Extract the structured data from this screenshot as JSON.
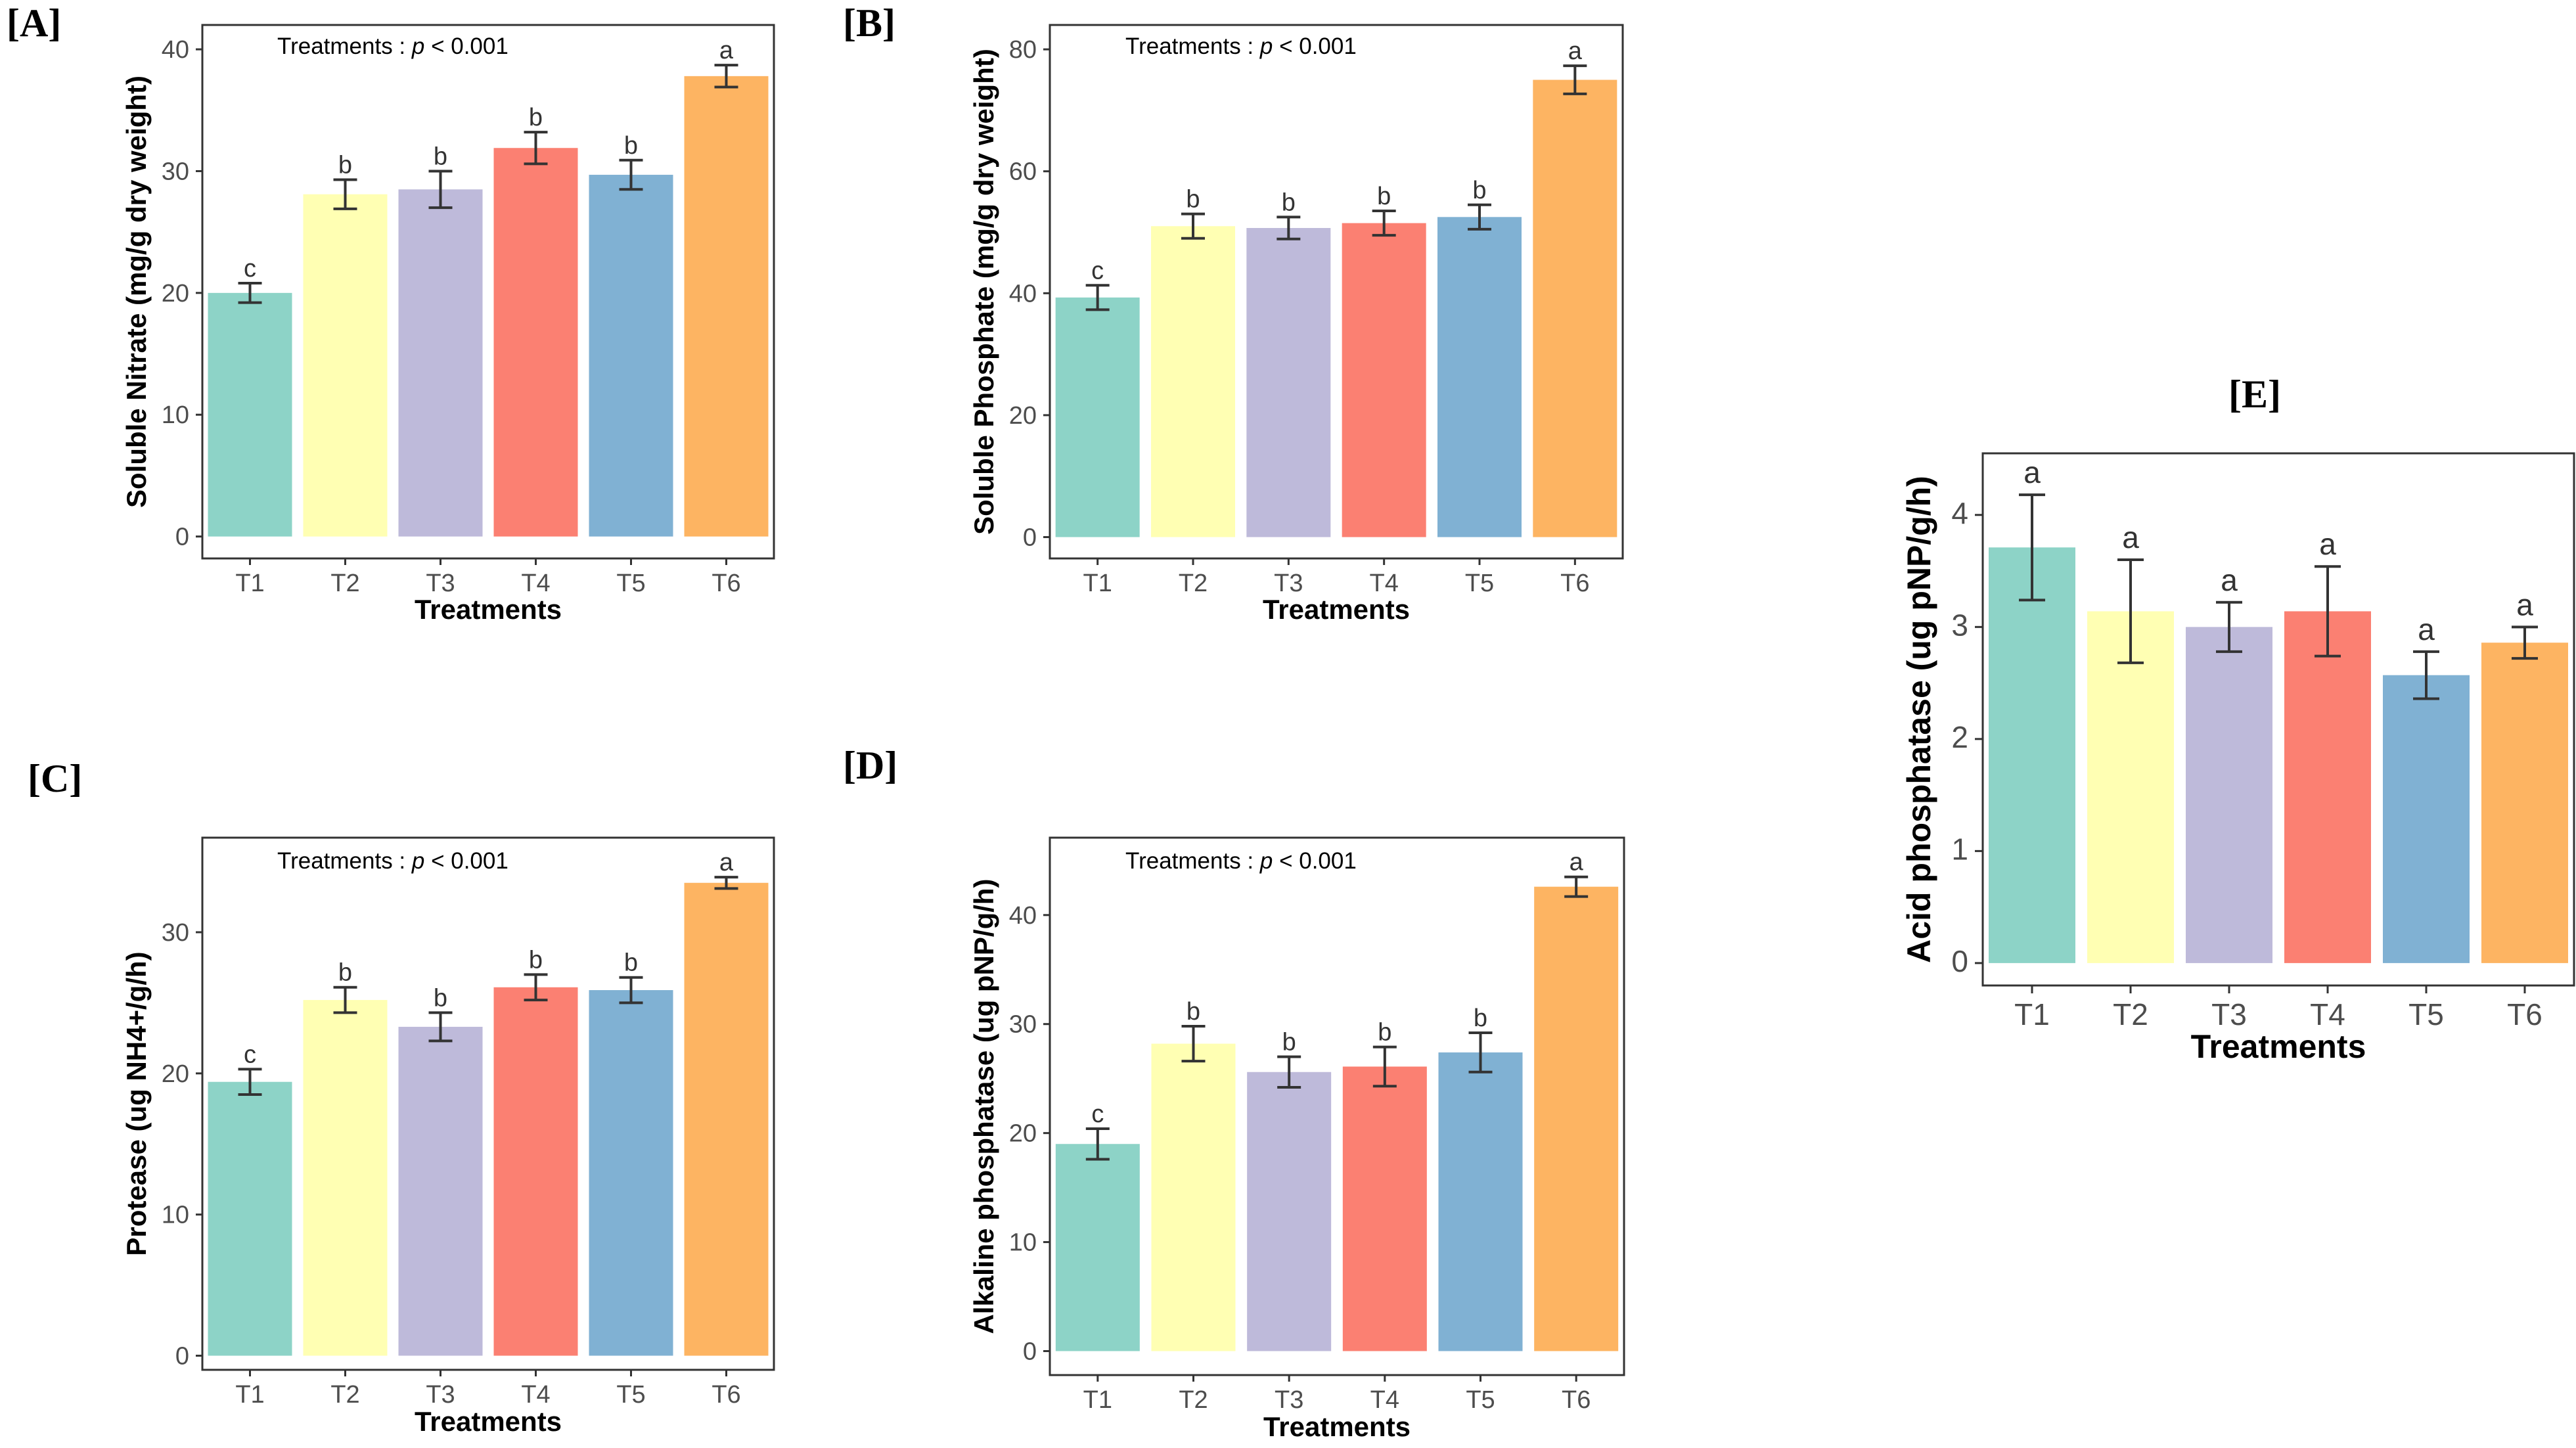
{
  "colors": {
    "T1": "#8dd3c7",
    "T2": "#ffffb3",
    "T3": "#bebada",
    "T4": "#fb8072",
    "T5": "#80b1d3",
    "T6": "#fdb462",
    "error_bar": "#333333",
    "frame": "#333333"
  },
  "chart_data": [
    {
      "panel": "[A]",
      "type": "bar",
      "categories": [
        "T1",
        "T2",
        "T3",
        "T4",
        "T5",
        "T6"
      ],
      "values": [
        20.0,
        28.1,
        28.5,
        31.9,
        29.7,
        37.8
      ],
      "errors": [
        0.8,
        1.2,
        1.5,
        1.3,
        1.2,
        0.9
      ],
      "letters": [
        "c",
        "b",
        "b",
        "b",
        "b",
        "a"
      ],
      "annotation_prefix": "Treatments : ",
      "annotation_p": "p",
      "annotation_suffix": " < 0.001",
      "xlabel": "Treatments",
      "ylabel": "Soluble Nitrate (mg/g dry weight)",
      "ylim": [
        -1.8,
        42
      ],
      "yticks": [
        0,
        10,
        20,
        30,
        40
      ],
      "grid": false
    },
    {
      "panel": "[B]",
      "type": "bar",
      "categories": [
        "T1",
        "T2",
        "T3",
        "T4",
        "T5",
        "T6"
      ],
      "values": [
        39.3,
        51.0,
        50.7,
        51.5,
        52.5,
        75.0
      ],
      "errors": [
        2.0,
        2.0,
        1.8,
        2.0,
        2.0,
        2.3
      ],
      "letters": [
        "c",
        "b",
        "b",
        "b",
        "b",
        "a"
      ],
      "annotation_prefix": "Treatments : ",
      "annotation_p": "p",
      "annotation_suffix": " < 0.001",
      "xlabel": "Treatments",
      "ylabel": "Soluble Phosphate (mg/g dry weight)",
      "ylim": [
        -3.5,
        84
      ],
      "yticks": [
        0,
        20,
        40,
        60,
        80
      ],
      "grid": false
    },
    {
      "panel": "[C]",
      "type": "bar",
      "categories": [
        "T1",
        "T2",
        "T3",
        "T4",
        "T5",
        "T6"
      ],
      "values": [
        19.4,
        25.2,
        23.3,
        26.1,
        25.9,
        33.5
      ],
      "errors": [
        0.9,
        0.9,
        1.0,
        0.9,
        0.9,
        0.4
      ],
      "letters": [
        "c",
        "b",
        "b",
        "b",
        "b",
        "a"
      ],
      "annotation_prefix": "Treatments : ",
      "annotation_p": "p",
      "annotation_suffix": " < 0.001",
      "xlabel": "Treatments",
      "ylabel": "Protease (ug NH4+/g/h)",
      "ylim": [
        -1.0,
        36.7
      ],
      "yticks": [
        0,
        10,
        20,
        30
      ],
      "grid": false
    },
    {
      "panel": "[D]",
      "type": "bar",
      "categories": [
        "T1",
        "T2",
        "T3",
        "T4",
        "T5",
        "T6"
      ],
      "values": [
        19.0,
        28.2,
        25.6,
        26.1,
        27.4,
        42.6
      ],
      "errors": [
        1.4,
        1.6,
        1.4,
        1.8,
        1.8,
        0.9
      ],
      "letters": [
        "c",
        "b",
        "b",
        "b",
        "b",
        "a"
      ],
      "annotation_prefix": "Treatments : ",
      "annotation_p": "p",
      "annotation_suffix": " < 0.001",
      "xlabel": "Treatments",
      "ylabel": "Alkaline phosphatase (ug pNP/g/h)",
      "ylim": [
        -2.2,
        47.1
      ],
      "yticks": [
        0,
        10,
        20,
        30,
        40
      ],
      "grid": false
    },
    {
      "panel": "[E]",
      "type": "bar",
      "categories": [
        "T1",
        "T2",
        "T3",
        "T4",
        "T5",
        "T6"
      ],
      "values": [
        3.71,
        3.14,
        3.0,
        3.14,
        2.57,
        2.86
      ],
      "errors": [
        0.47,
        0.46,
        0.22,
        0.4,
        0.21,
        0.14
      ],
      "letters": [
        "a",
        "a",
        "a",
        "a",
        "a",
        "a"
      ],
      "xlabel": "Treatments",
      "ylabel": "Acid phosphatase (ug pNP/g/h)",
      "ylim": [
        -0.2,
        4.55
      ],
      "yticks": [
        0,
        1,
        2,
        3,
        4
      ],
      "grid": false
    }
  ]
}
